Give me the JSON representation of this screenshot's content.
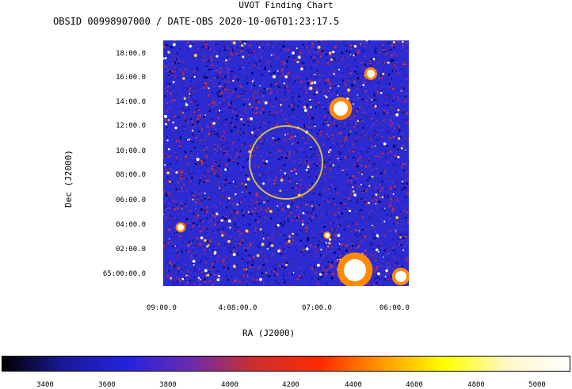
{
  "title": "UVOT Finding Chart",
  "subtitle": "OBSID 00998907000 / DATE-OBS 2020-10-06T01:23:17.5",
  "chart_data": {
    "type": "heatmap",
    "title": "UVOT Finding Chart",
    "subtitle": "OBSID 00998907000 / DATE-OBS 2020-10-06T01:23:17.5",
    "xlabel": "RA (J2000)",
    "ylabel": "Dec (J2000)",
    "x_ticks": [
      "09:00.0",
      "4:08:00.0",
      "07:00.0",
      "06:00.0"
    ],
    "y_ticks": [
      "18:00.0",
      "16:00.0",
      "14:00.0",
      "12:00.0",
      "10:00.0",
      "08:00.0",
      "06:00.0",
      "04:00.0",
      "02:00.0",
      "65:00:00.0"
    ],
    "colorbar": {
      "ticks": [
        "3400",
        "3600",
        "3800",
        "4000",
        "4200",
        "4400",
        "4600",
        "4800",
        "5000"
      ],
      "colors": [
        "#000000",
        "#1a1a9a",
        "#2323e0",
        "#6a2ab0",
        "#c83030",
        "#ff2a00",
        "#ff9a00",
        "#ffff00",
        "#fff7c8",
        "#ffffff"
      ]
    },
    "source_circle_color": "#d8c040"
  }
}
